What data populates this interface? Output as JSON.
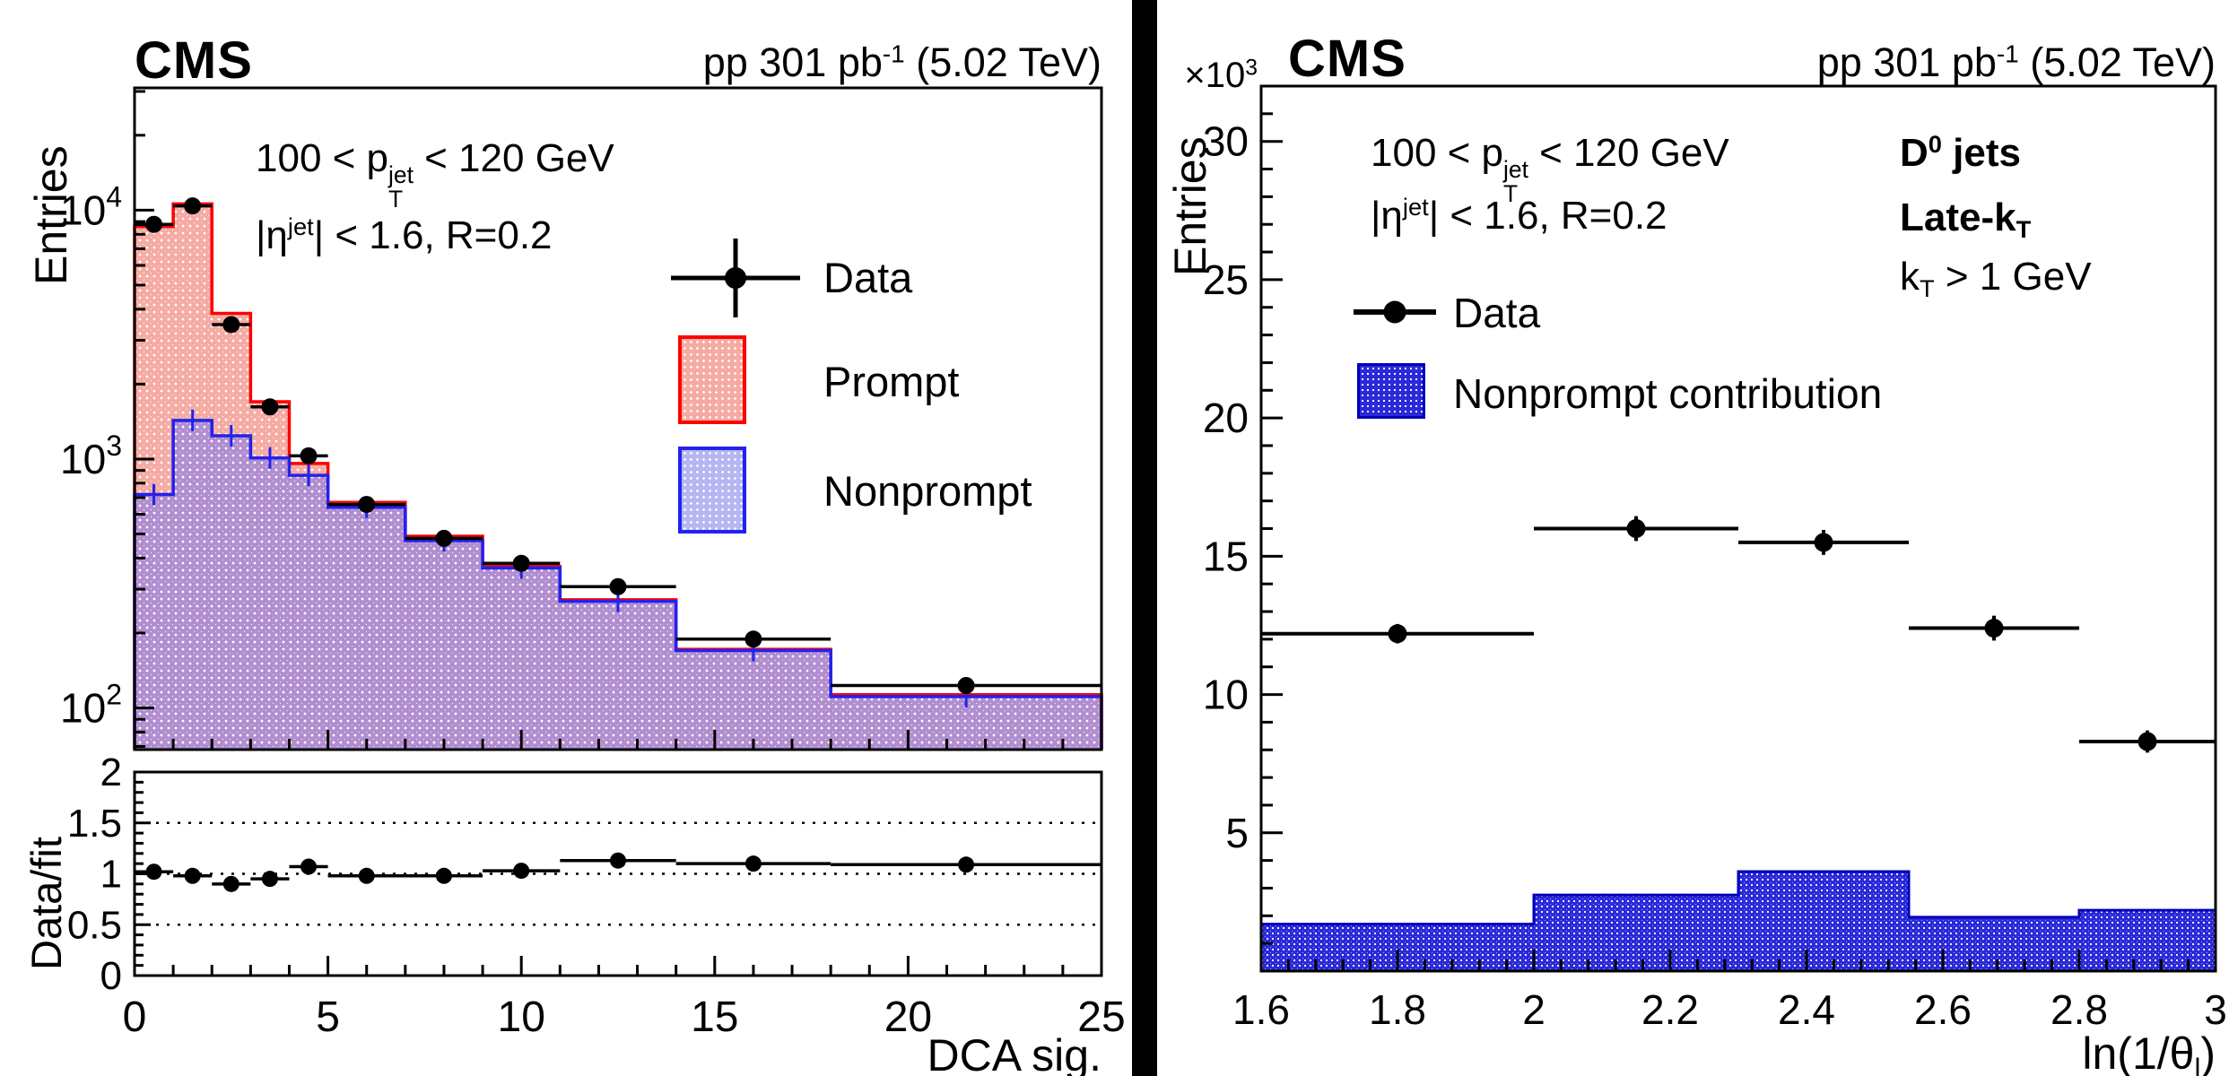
{
  "colors": {
    "red_line": "#ff0000",
    "pink_fill": "#f5aba3",
    "blue_line_left": "#2222ee",
    "lavender_legend": "#b6b6f2",
    "purple_overlap": "#b18ed0",
    "right_blue_fill": "#2a2ad8",
    "right_blue_line": "#0000bb",
    "marker": "#000000"
  },
  "left_panel": {
    "cms": "CMS",
    "lumi": {
      "p1": "pp 301 pb",
      "sup": "-1",
      "p2": " (5.02 TeV)"
    },
    "cut1": {
      "p1": "100 < p",
      "sup": "jet",
      "sub": "T",
      "p2": " < 120 GeV"
    },
    "cut2": {
      "p1": "|η",
      "sup": "jet",
      "p2": "| < 1.6, R=0.2"
    },
    "legend": {
      "data": "Data",
      "prompt": "Prompt",
      "nonprompt": "Nonprompt"
    },
    "ylabel_main": "Entries",
    "ylabel_ratio": "Data/fit",
    "xlabel": "DCA sig."
  },
  "right_panel": {
    "cms": "CMS",
    "lumi": {
      "p1": "pp 301 pb",
      "sup": "-1",
      "p2": " (5.02 TeV)"
    },
    "cut1": {
      "p1": "100 < p",
      "sup": "jet",
      "sub": "T",
      "p2": " < 120 GeV"
    },
    "cut2": {
      "p1": "|η",
      "sup": "jet",
      "p2": "| < 1.6, R=0.2"
    },
    "tag1": {
      "p1": "D",
      "sup": "0",
      "p2": " jets"
    },
    "tag2": {
      "p1": "Late-k",
      "sub": "T"
    },
    "tag3": {
      "p1": "k",
      "sub": "T",
      "p2": " > 1 GeV"
    },
    "legend": {
      "data": "Data",
      "nonprompt": "Nonprompt contribution"
    },
    "ylabel": "Entries",
    "multiplier": {
      "p1": "×10",
      "sup": "3"
    },
    "xlabel": {
      "p1": "ln(1/θ",
      "sub": "l",
      "p2": ")"
    }
  },
  "chart_data": [
    {
      "id": "left-main",
      "type": "bar",
      "subtype": "stacked-fit-histograms-with-data-points",
      "title": "",
      "xlabel": "DCA sig.",
      "ylabel": "Entries",
      "x_edges": [
        0,
        1,
        2,
        3,
        4,
        5,
        7,
        9,
        11,
        14,
        18,
        25
      ],
      "xlim": [
        0,
        25
      ],
      "ylog": true,
      "ylim": [
        68,
        31000
      ],
      "y_major_exponents": [
        2,
        3,
        4
      ],
      "grid": false,
      "legend_position": "upper-middle",
      "series": [
        {
          "name": "Prompt",
          "style": "pink-hatch-red-outline",
          "values": [
            8600,
            10600,
            3850,
            1700,
            960,
            670,
            490,
            370,
            272,
            172,
            113
          ]
        },
        {
          "name": "Nonprompt",
          "style": "purple-hatch-blue-outline",
          "values": [
            720,
            1430,
            1240,
            1010,
            860,
            640,
            470,
            365,
            268,
            170,
            111
          ]
        },
        {
          "name": "Data",
          "style": "black-points",
          "values": [
            8770,
            10400,
            3470,
            1620,
            1030,
            657,
            480,
            381,
            307,
            189,
            123
          ],
          "yerr": [
            160,
            170,
            80,
            45,
            35,
            22,
            18,
            16,
            14,
            11,
            9
          ]
        }
      ]
    },
    {
      "id": "left-ratio",
      "type": "scatter",
      "title": "",
      "xlabel": "DCA sig.",
      "ylabel": "Data/fit",
      "x_edges": [
        0,
        1,
        2,
        3,
        4,
        5,
        7,
        9,
        11,
        14,
        18,
        25
      ],
      "xlim": [
        0,
        25
      ],
      "ylim": [
        0,
        2
      ],
      "y_major_ticks": [
        0,
        0.5,
        1,
        1.5,
        2
      ],
      "y_minor_step": 0.1,
      "x_major_ticks": [
        0,
        5,
        10,
        15,
        20,
        25
      ],
      "x_minor_step": 1,
      "dotted_lines": [
        0.5,
        1.0,
        1.5
      ],
      "values": [
        1.02,
        0.98,
        0.9,
        0.95,
        1.07,
        0.98,
        0.98,
        1.03,
        1.13,
        1.1,
        1.09
      ],
      "yerr": [
        0.025,
        0.025,
        0.03,
        0.03,
        0.04,
        0.03,
        0.035,
        0.04,
        0.05,
        0.05,
        0.055
      ]
    },
    {
      "id": "right-main",
      "type": "bar",
      "subtype": "histogram-with-data-points",
      "title": "",
      "xlabel": "ln(1/θ_l)",
      "ylabel": "Entries (×10³)",
      "x_edges": [
        1.6,
        2.0,
        2.3,
        2.55,
        2.8,
        3.0
      ],
      "xlim": [
        1.6,
        3.0
      ],
      "ylim": [
        0,
        32
      ],
      "y_major_ticks": [
        5,
        10,
        15,
        20,
        25,
        30
      ],
      "y_minor_step": 1,
      "x_major_ticks": [
        1.6,
        1.8,
        2.0,
        2.2,
        2.4,
        2.6,
        2.8,
        3.0
      ],
      "x_minor_step": 0.04,
      "grid": false,
      "legend_position": "upper-left",
      "series": [
        {
          "name": "Nonprompt contribution",
          "style": "blue-hatch",
          "values": [
            1.7,
            2.75,
            3.6,
            1.95,
            2.2
          ]
        },
        {
          "name": "Data",
          "style": "black-points",
          "values": [
            12.2,
            16.0,
            15.5,
            12.4,
            8.3
          ],
          "yerr": [
            0.35,
            0.45,
            0.45,
            0.45,
            0.4
          ]
        }
      ]
    }
  ]
}
